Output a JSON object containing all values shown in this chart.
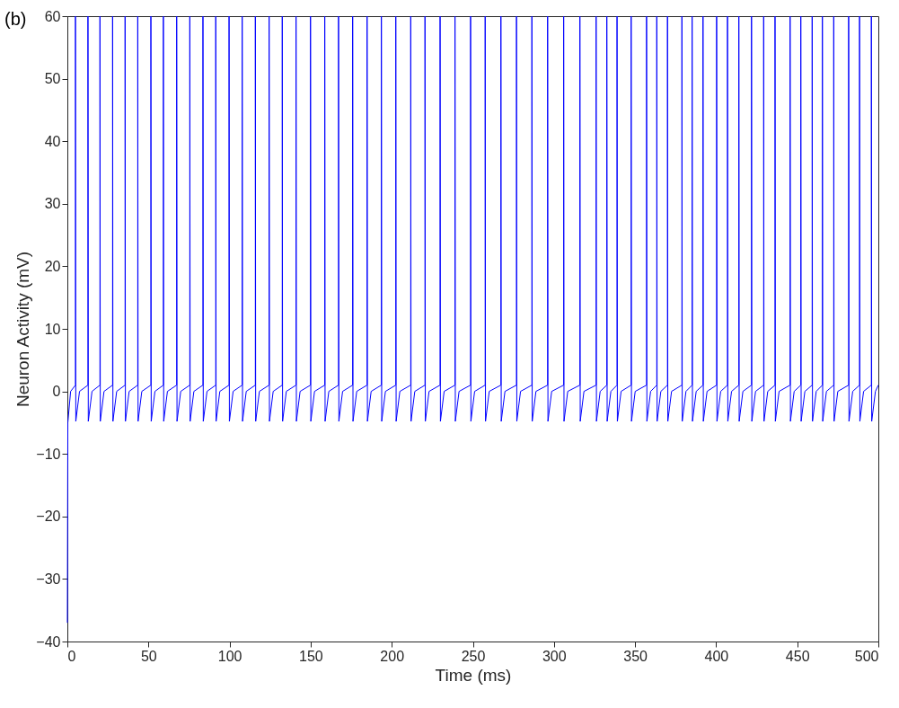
{
  "chart_data": {
    "type": "line",
    "xlabel": "Time (ms)",
    "ylabel": "Neuron Activity (mV)",
    "xlim": [
      0,
      500
    ],
    "ylim": [
      -40,
      60
    ],
    "xticks": [
      0,
      50,
      100,
      150,
      200,
      250,
      300,
      350,
      400,
      450,
      500
    ],
    "yticks": [
      -40,
      -30,
      -20,
      -10,
      0,
      10,
      20,
      30,
      40,
      50,
      60
    ],
    "annotations": [
      "(b)"
    ],
    "series": [
      {
        "color": "#0000ff",
        "x": [
          0,
          0.3,
          2,
          5.0,
          5.0,
          5.2,
          7.5,
          12.7,
          12.7,
          12.9,
          15.2,
          20.1,
          20.1,
          20.3,
          22.6,
          27.9,
          27.9,
          28.1,
          30.4,
          35.6,
          35.6,
          35.8,
          38.1,
          43.4,
          43.4,
          43.6,
          45.9,
          51.5,
          51.5,
          51.7,
          54.0,
          59.2,
          59.2,
          59.4,
          61.7,
          67.4,
          67.4,
          67.6,
          69.9,
          75.5,
          75.5,
          75.7,
          78.0,
          83.6,
          83.6,
          83.8,
          86.1,
          91.5,
          91.5,
          91.7,
          94.0,
          99.7,
          99.7,
          99.9,
          102.2,
          107.8,
          107.8,
          108.0,
          110.3,
          115.9,
          115.9,
          116.1,
          118.4,
          124.4,
          124.4,
          124.6,
          126.9,
          132.5,
          132.5,
          132.7,
          135.0,
          141.0,
          141.0,
          141.2,
          143.5,
          149.9,
          149.9,
          150.1,
          152.4,
          158.7,
          158.7,
          158.9,
          161.2,
          167.2,
          167.2,
          167.4,
          169.7,
          175.9,
          175.9,
          176.1,
          178.4,
          184.8,
          184.8,
          185.0,
          187.3,
          193.6,
          193.6,
          193.8,
          196.1,
          202.5,
          202.5,
          202.7,
          205.0,
          211.7,
          211.7,
          211.9,
          214.2,
          220.5,
          220.5,
          220.7,
          223.0,
          229.8,
          229.8,
          230.0,
          232.3,
          239.0,
          239.0,
          239.2,
          241.5,
          248.6,
          248.6,
          248.8,
          251.1,
          257.6,
          257.6,
          257.8,
          260.1,
          267.3,
          267.3,
          267.5,
          269.8,
          276.9,
          276.9,
          277.1,
          279.4,
          286.4,
          286.4,
          286.6,
          288.9,
          296.1,
          296.1,
          296.3,
          298.6,
          306.0,
          306.0,
          306.2,
          308.5,
          316.0,
          316.0,
          316.2,
          318.5,
          326.0,
          326.0,
          326.2,
          328.5,
          332.6,
          332.6,
          332.8,
          335.1,
          338.9,
          338.9,
          339.1,
          341.4,
          347.6,
          347.6,
          347.8,
          350.1,
          357.1,
          357.1,
          357.3,
          359.6,
          363.4,
          363.4,
          363.6,
          365.9,
          370.0,
          370.0,
          370.2,
          372.5,
          378.9,
          378.9,
          379.1,
          381.4,
          385.2,
          385.2,
          385.4,
          387.7,
          391.9,
          391.9,
          392.1,
          394.4,
          400.3,
          400.3,
          400.5,
          402.8,
          407.0,
          407.0,
          407.2,
          409.5,
          414.0,
          414.0,
          414.2,
          416.5,
          421.8,
          421.8,
          422.0,
          424.3,
          429.3,
          429.3,
          429.5,
          431.8,
          436.3,
          436.3,
          436.5,
          438.8,
          445.6,
          445.6,
          445.8,
          448.1,
          452.2,
          452.2,
          452.4,
          454.7,
          459.2,
          459.2,
          459.4,
          461.7,
          465.5,
          465.5,
          465.7,
          468.0,
          472.5,
          472.5,
          472.7,
          475.0,
          481.7,
          481.7,
          481.9,
          484.2,
          488.4,
          488.4,
          488.6,
          490.9,
          495.7,
          495.7,
          495.9,
          498.2,
          500
        ],
        "values": [
          -37,
          -5,
          0,
          1,
          60,
          -4.8,
          0,
          1,
          60,
          -4.8,
          0,
          1,
          60,
          -4.8,
          0,
          1,
          60,
          -4.8,
          0,
          1,
          60,
          -4.8,
          0,
          1,
          60,
          -4.8,
          0,
          1,
          60,
          -4.8,
          0,
          1,
          60,
          -4.8,
          0,
          1,
          60,
          -4.8,
          0,
          1,
          60,
          -4.8,
          0,
          1,
          60,
          -4.8,
          0,
          1,
          60,
          -4.8,
          0,
          1,
          60,
          -4.8,
          0,
          1,
          60,
          -4.8,
          0,
          1,
          60,
          -4.8,
          0,
          1,
          60,
          -4.8,
          0,
          1,
          60,
          -4.8,
          0,
          1,
          60,
          -4.8,
          0,
          1,
          60,
          -4.8,
          0,
          1,
          60,
          -4.8,
          0,
          1,
          60,
          -4.8,
          0,
          1,
          60,
          -4.8,
          0,
          1,
          60,
          -4.8,
          0,
          1,
          60,
          -4.8,
          0,
          1,
          60,
          -4.8,
          0,
          1,
          60,
          -4.8,
          0,
          1,
          60,
          -4.8,
          0,
          1,
          60,
          -4.8,
          0,
          1,
          60,
          -4.8,
          0,
          1,
          60,
          -4.8,
          0,
          1,
          60,
          -4.8,
          0,
          1,
          60,
          -4.8,
          0,
          1,
          60,
          -4.8,
          0,
          1,
          60,
          -4.8,
          0,
          1,
          60,
          -4.8,
          0,
          1,
          60,
          -4.8,
          0,
          1,
          60,
          -4.8,
          0,
          1,
          60,
          -4.8,
          0,
          1,
          60,
          -4.8,
          0,
          1,
          60,
          -4.8,
          0,
          1,
          60,
          -4.8,
          0,
          1,
          60,
          -4.8,
          0,
          1,
          60,
          -4.8,
          0,
          1,
          60,
          -4.8,
          0,
          1,
          60,
          -4.8,
          0,
          1,
          60,
          -4.8,
          0,
          1,
          60,
          -4.8,
          0,
          1,
          60,
          -4.8,
          0,
          1,
          60,
          -4.8,
          0,
          1,
          60,
          -4.8,
          0,
          1,
          60,
          -4.8,
          0,
          1,
          60,
          -4.8,
          0,
          1,
          60,
          -4.8,
          0,
          1,
          60,
          -4.8,
          0,
          1,
          60,
          -4.8,
          0,
          1,
          60,
          -4.8,
          0,
          1,
          60,
          -4.8,
          0,
          1,
          60,
          -4.8,
          0,
          1,
          60,
          -4.8,
          0,
          1,
          60,
          -4.8,
          0,
          1,
          60,
          -4.8,
          0,
          1
        ]
      }
    ]
  }
}
